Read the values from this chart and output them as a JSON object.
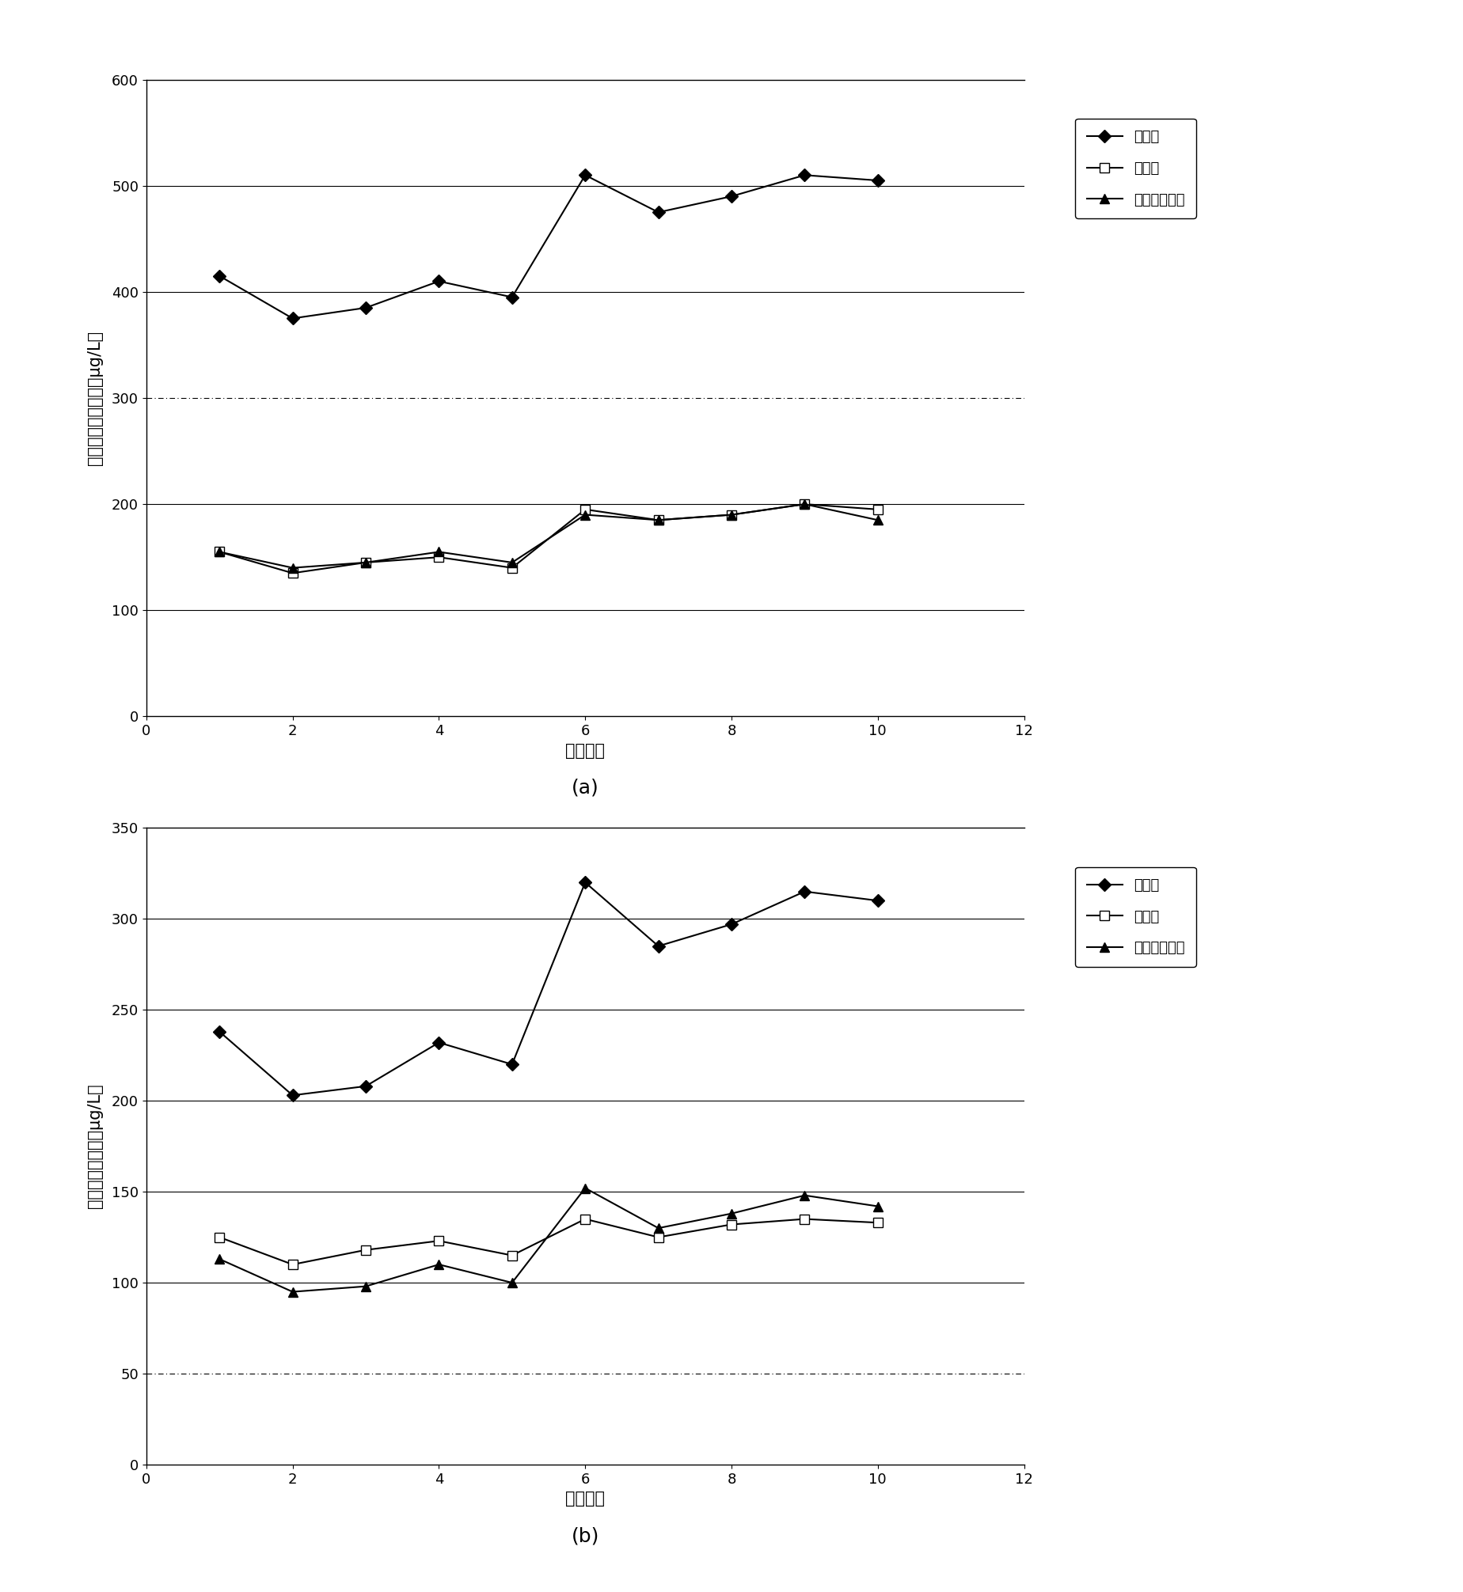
{
  "chart_a": {
    "x": [
      1,
      2,
      3,
      4,
      5,
      6,
      7,
      8,
      9,
      10
    ],
    "calc": [
      415,
      375,
      385,
      410,
      395,
      510,
      475,
      490,
      510,
      505
    ],
    "measured": [
      155,
      135,
      145,
      150,
      140,
      195,
      185,
      190,
      200,
      195
    ],
    "corrected": [
      155,
      140,
      145,
      155,
      145,
      190,
      185,
      190,
      200,
      185
    ],
    "ylabel": "三卤甲烷生成势値（μg/L）",
    "xlabel": "水样编号",
    "ylim": [
      0,
      600
    ],
    "yticks": [
      0,
      100,
      200,
      300,
      400,
      500,
      600
    ],
    "xlim": [
      0,
      12
    ],
    "xticks": [
      0,
      2,
      4,
      6,
      8,
      10,
      12
    ],
    "label_a": "计算値",
    "label_b": "实测値",
    "label_c": "修正后计算値",
    "caption": "(a)",
    "grid_solid": [
      100,
      200,
      400,
      500
    ],
    "grid_dash": [
      300
    ]
  },
  "chart_b": {
    "x": [
      1,
      2,
      3,
      4,
      5,
      6,
      7,
      8,
      9,
      10
    ],
    "calc": [
      238,
      203,
      208,
      232,
      220,
      320,
      285,
      297,
      315,
      310
    ],
    "measured": [
      125,
      110,
      118,
      123,
      115,
      135,
      125,
      132,
      135,
      133
    ],
    "corrected": [
      113,
      95,
      98,
      110,
      100,
      152,
      130,
      138,
      148,
      142
    ],
    "ylabel": "卤乙酸生成势値（μg/L）",
    "xlabel": "水样编号",
    "ylim": [
      0,
      350
    ],
    "yticks": [
      0,
      50,
      100,
      150,
      200,
      250,
      300,
      350
    ],
    "xlim": [
      0,
      12
    ],
    "xticks": [
      0,
      2,
      4,
      6,
      8,
      10,
      12
    ],
    "label_a": "计算値",
    "label_b": "测量値",
    "label_c": "修正后计算値",
    "caption": "(b)",
    "grid_solid": [
      100,
      150,
      200,
      250,
      300
    ],
    "grid_dash": [
      50
    ]
  },
  "line_color": "#000000",
  "marker_size": 8,
  "line_width": 1.5,
  "font_size_label": 15,
  "font_size_tick": 13,
  "font_size_legend": 13,
  "font_size_caption": 18
}
